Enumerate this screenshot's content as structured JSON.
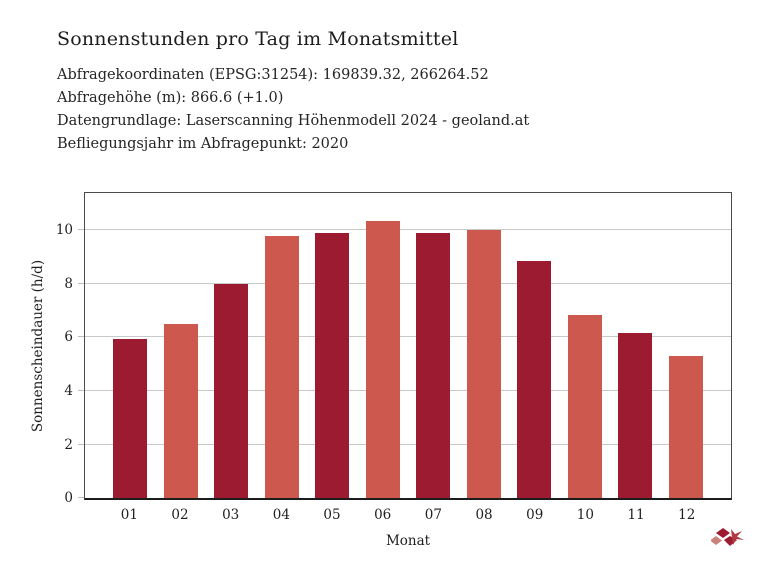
{
  "header": {
    "title": "Sonnenstunden pro Tag im Monatsmittel",
    "meta_lines": [
      "Abfragekoordinaten (EPSG:31254): 169839.32, 266264.52",
      "Abfragehöhe (m): 866.6 (+1.0)",
      "Datengrundlage: Laserscanning Höhenmodell 2024 - geoland.at",
      "Befliegungsjahr im Abfragepunkt: 2020"
    ]
  },
  "chart_data": {
    "type": "bar",
    "title": "Sonnenstunden pro Tag im Monatsmittel",
    "categories": [
      "01",
      "02",
      "03",
      "04",
      "05",
      "06",
      "07",
      "08",
      "09",
      "10",
      "11",
      "12"
    ],
    "values": [
      5.95,
      6.5,
      8.0,
      9.8,
      9.9,
      10.35,
      9.9,
      10.0,
      8.85,
      6.85,
      6.15,
      5.3
    ],
    "bar_colors": [
      "#9d1b31",
      "#cd584e",
      "#9d1b31",
      "#cd584e",
      "#9d1b31",
      "#cd584e",
      "#9d1b31",
      "#cd584e",
      "#9d1b31",
      "#cd584e",
      "#9d1b31",
      "#cd584e"
    ],
    "xlabel": "Monat",
    "ylabel": "Sonnenscheindauer (h/d)",
    "ylim": [
      0,
      11.4
    ],
    "yticks": [
      0,
      2,
      4,
      6,
      8,
      10
    ],
    "grid": true,
    "legend": false,
    "gridline_color": "#c9c9c9",
    "axis_color": "#4a4a4a"
  },
  "branding": {
    "logo_icon": "red-diamonds-brand-logo",
    "logo_colors": [
      "#9d1b31",
      "#b03a42",
      "#c9837c"
    ]
  }
}
